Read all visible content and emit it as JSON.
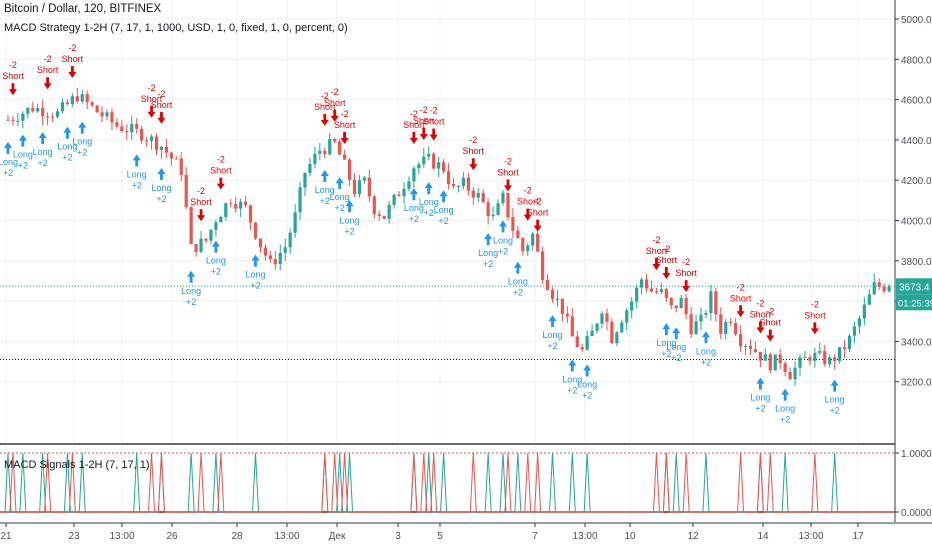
{
  "header": {
    "symbol_title": "Bitcoin / Dollar, 120, BITFINEX",
    "strategy_label": "MACD Strategy 1-2H (7, 17, 1, 1000, USD, 1, 0, fixed, 1, 0, percent, 0)",
    "signals_label": "MACD Signals 1-2H (7, 17, 1)"
  },
  "price_tags": {
    "last_price": "3673.4",
    "countdown": "01:25:39"
  },
  "colors": {
    "bull": "#26a69a",
    "bear": "#ef5350",
    "long_arrow": "#2196f3",
    "short_arrow": "#e00000",
    "grid": "#eef0f3",
    "axis_text": "#4c525e",
    "last_price_tag": "#26a69a",
    "countdown_tag": "#26a69a"
  },
  "chart_data": [
    {
      "type": "candlestick",
      "title": "Bitcoin / Dollar, 120, BITFINEX",
      "y_ticks": [
        5000,
        4800,
        4600,
        4400,
        4200,
        4000,
        3800,
        3600,
        3400,
        3200
      ],
      "y_tick_labels": [
        "5000.0",
        "4800.0",
        "4600.0",
        "4400.0",
        "4200.0",
        "4000.0",
        "3800.0",
        "3600.0",
        "3400.0",
        "3200.0"
      ],
      "x_tick_labels": [
        "21",
        "23",
        "13:00",
        "26",
        "28",
        "13:00",
        "Дек",
        "3",
        "5",
        "7",
        "13:00",
        "10",
        "12",
        "14",
        "13:00",
        "17"
      ],
      "ylim": [
        3140,
        5070
      ],
      "price_path": [
        [
          0,
          4500
        ],
        [
          5,
          4560
        ],
        [
          10,
          4530
        ],
        [
          14,
          4620
        ],
        [
          18,
          4540
        ],
        [
          22,
          4470
        ],
        [
          27,
          4430
        ],
        [
          31,
          4370
        ],
        [
          35,
          4250
        ],
        [
          37,
          3860
        ],
        [
          40,
          3900
        ],
        [
          42,
          4010
        ],
        [
          45,
          4110
        ],
        [
          48,
          4060
        ],
        [
          51,
          3880
        ],
        [
          53,
          3780
        ],
        [
          56,
          3870
        ],
        [
          58,
          4020
        ],
        [
          60,
          4240
        ],
        [
          63,
          4350
        ],
        [
          66,
          4380
        ],
        [
          68,
          4270
        ],
        [
          70,
          4150
        ],
        [
          72,
          4190
        ],
        [
          74,
          4060
        ],
        [
          76,
          4020
        ],
        [
          79,
          4140
        ],
        [
          82,
          4270
        ],
        [
          85,
          4300
        ],
        [
          88,
          4260
        ],
        [
          90,
          4150
        ],
        [
          92,
          4180
        ],
        [
          95,
          4120
        ],
        [
          98,
          4010
        ],
        [
          100,
          4110
        ],
        [
          102,
          3960
        ],
        [
          104,
          3850
        ],
        [
          106,
          3930
        ],
        [
          108,
          3740
        ],
        [
          110,
          3640
        ],
        [
          112,
          3560
        ],
        [
          114,
          3420
        ],
        [
          116,
          3350
        ],
        [
          118,
          3440
        ],
        [
          120,
          3570
        ],
        [
          122,
          3420
        ],
        [
          124,
          3520
        ],
        [
          126,
          3600
        ],
        [
          128,
          3710
        ],
        [
          130,
          3650
        ],
        [
          132,
          3640
        ],
        [
          134,
          3560
        ],
        [
          136,
          3600
        ],
        [
          138,
          3470
        ],
        [
          140,
          3500
        ],
        [
          142,
          3620
        ],
        [
          144,
          3460
        ],
        [
          146,
          3520
        ],
        [
          148,
          3410
        ],
        [
          150,
          3380
        ],
        [
          152,
          3330
        ],
        [
          154,
          3290
        ],
        [
          156,
          3310
        ],
        [
          158,
          3240
        ],
        [
          160,
          3290
        ],
        [
          162,
          3330
        ],
        [
          164,
          3320
        ],
        [
          166,
          3300
        ],
        [
          168,
          3340
        ],
        [
          170,
          3410
        ],
        [
          172,
          3510
        ],
        [
          174,
          3620
        ],
        [
          175,
          3673.4
        ]
      ],
      "x_max_bar": 178,
      "last_price": 3673.4,
      "reference_line": 3310
    },
    {
      "type": "markers",
      "title": "MACD Strategy 1-2H (7, 17, 1, 1000, USD, 1, 0, fixed, 1, 0, percent, 0)",
      "long_label": "Long",
      "long_qty": "+2",
      "short_label": "Short",
      "short_qty": "-2",
      "long_bars": [
        0,
        3,
        7,
        12,
        15,
        26,
        31,
        37,
        42,
        50,
        64,
        67,
        69,
        82,
        85,
        88,
        97,
        100,
        103,
        110,
        114,
        117,
        133,
        135,
        141,
        152,
        157,
        167
      ],
      "short_bars": [
        1,
        8,
        13,
        29,
        31,
        39,
        43,
        64,
        66,
        68,
        82,
        84,
        86,
        94,
        101,
        105,
        107,
        131,
        133,
        137,
        148,
        152,
        154,
        163
      ]
    },
    {
      "type": "line",
      "title": "MACD Signals 1-2H (7, 17, 1)",
      "y_ticks": [
        1,
        0
      ],
      "y_tick_labels": [
        "1.0000",
        "0.0000"
      ],
      "ylim": [
        0,
        1
      ],
      "series": [
        {
          "color": "#26a69a",
          "spike_bars": [
            0,
            3,
            7,
            12,
            15,
            26,
            31,
            37,
            42,
            50,
            64,
            67,
            69,
            82,
            85,
            88,
            97,
            100,
            103,
            110,
            114,
            117,
            133,
            135,
            141,
            152,
            157,
            167
          ]
        },
        {
          "color": "#ef5350",
          "spike_bars": [
            1,
            8,
            13,
            29,
            31,
            39,
            43,
            64,
            66,
            68,
            82,
            84,
            86,
            94,
            101,
            105,
            107,
            131,
            133,
            137,
            148,
            152,
            154,
            163
          ]
        }
      ],
      "threshold": 1
    }
  ]
}
